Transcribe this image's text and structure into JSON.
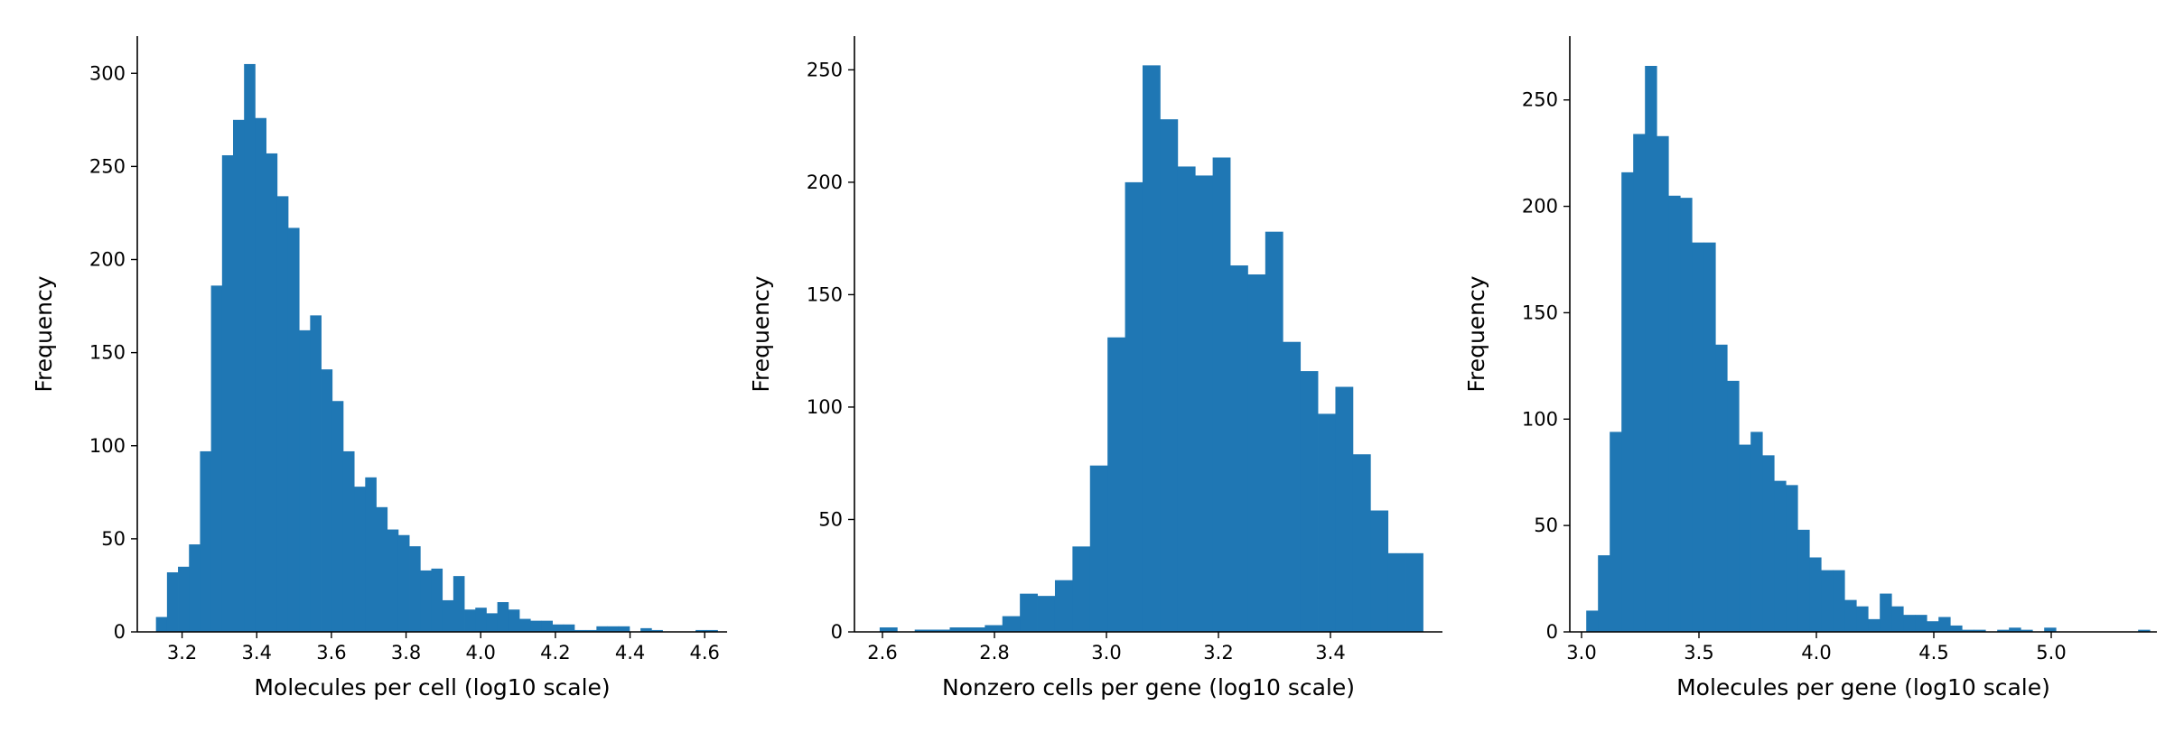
{
  "chart_data": [
    {
      "type": "bar",
      "subtype": "histogram",
      "xlabel": "Molecules per cell (log10 scale)",
      "ylabel": "Frequency",
      "xlim": [
        3.08,
        4.66
      ],
      "ylim": [
        0,
        320
      ],
      "xticks": [
        "3.2",
        "3.4",
        "3.6",
        "3.8",
        "4.0",
        "4.2",
        "4.4",
        "4.6"
      ],
      "yticks": [
        "0",
        "50",
        "100",
        "150",
        "200",
        "250",
        "300"
      ],
      "bin_start": 3.13,
      "bin_width": 0.0295,
      "color": "#1f77b4",
      "values": [
        8,
        32,
        35,
        47,
        97,
        186,
        256,
        275,
        305,
        276,
        257,
        234,
        217,
        162,
        170,
        141,
        124,
        97,
        78,
        83,
        67,
        55,
        52,
        46,
        33,
        34,
        17,
        30,
        12,
        13,
        10,
        16,
        12,
        7,
        6,
        6,
        4,
        4,
        1,
        1,
        3,
        3,
        3,
        0,
        2,
        1,
        0,
        0,
        0,
        1,
        1,
        0,
        0
      ]
    },
    {
      "type": "bar",
      "subtype": "histogram",
      "xlabel": "Nonzero cells per gene (log10 scale)",
      "ylabel": "Frequency",
      "xlim": [
        2.55,
        3.6
      ],
      "ylim": [
        0,
        265
      ],
      "xticks": [
        "2.6",
        "2.8",
        "3.0",
        "3.2",
        "3.4"
      ],
      "yticks": [
        "0",
        "50",
        "100",
        "150",
        "200",
        "250"
      ],
      "bin_start": 2.595,
      "bin_width": 0.0313,
      "color": "#1f77b4",
      "values": [
        2,
        0,
        1,
        1,
        2,
        2,
        3,
        7,
        17,
        16,
        23,
        38,
        74,
        131,
        200,
        252,
        228,
        207,
        203,
        211,
        163,
        159,
        178,
        129,
        116,
        97,
        109,
        79,
        54,
        35,
        35
      ]
    },
    {
      "type": "bar",
      "subtype": "histogram",
      "xlabel": "Molecules per gene (log10 scale)",
      "ylabel": "Frequency",
      "xlim": [
        2.95,
        5.45
      ],
      "ylim": [
        0,
        280
      ],
      "xticks": [
        "3.0",
        "3.5",
        "4.0",
        "4.5",
        "5.0"
      ],
      "yticks": [
        "0",
        "50",
        "100",
        "150",
        "200",
        "250"
      ],
      "bin_start": 3.02,
      "bin_width": 0.05,
      "color": "#1f77b4",
      "values": [
        10,
        36,
        94,
        216,
        234,
        266,
        233,
        205,
        204,
        183,
        183,
        135,
        118,
        88,
        94,
        83,
        71,
        69,
        48,
        35,
        29,
        29,
        15,
        12,
        6,
        18,
        12,
        8,
        8,
        5,
        7,
        3,
        1,
        1,
        0,
        1,
        2,
        1,
        0,
        2,
        0,
        0,
        0,
        0,
        0,
        0,
        0,
        1
      ]
    }
  ]
}
